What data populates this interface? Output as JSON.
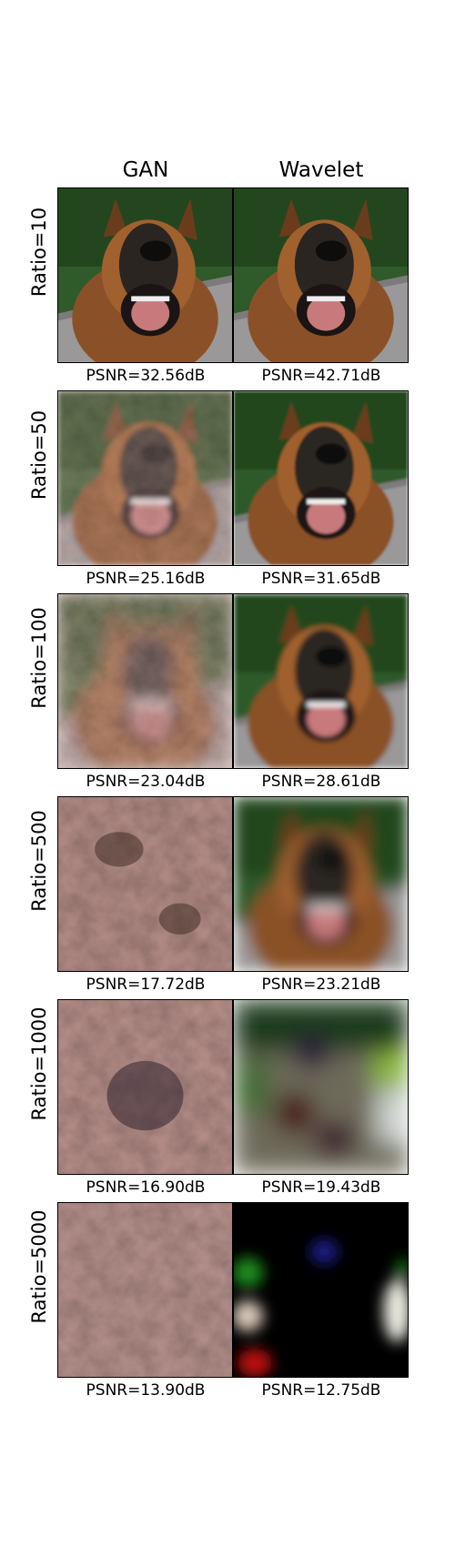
{
  "columns": [
    "GAN",
    "Wavelet"
  ],
  "rows": [
    {
      "label": "Ratio=10",
      "gan_psnr": "PSNR=32.56dB",
      "wavelet_psnr": "PSNR=42.71dB"
    },
    {
      "label": "Ratio=50",
      "gan_psnr": "PSNR=25.16dB",
      "wavelet_psnr": "PSNR=31.65dB"
    },
    {
      "label": "Ratio=100",
      "gan_psnr": "PSNR=23.04dB",
      "wavelet_psnr": "PSNR=28.61dB"
    },
    {
      "label": "Ratio=500",
      "gan_psnr": "PSNR=17.72dB",
      "wavelet_psnr": "PSNR=23.21dB"
    },
    {
      "label": "Ratio=1000",
      "gan_psnr": "PSNR=16.90dB",
      "wavelet_psnr": "PSNR=19.43dB"
    },
    {
      "label": "Ratio=5000",
      "gan_psnr": "PSNR=13.90dB",
      "wavelet_psnr": "PSNR=12.75dB"
    }
  ]
}
